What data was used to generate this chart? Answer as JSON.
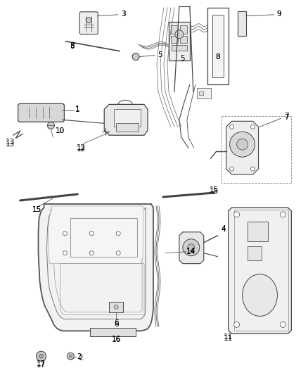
{
  "background_color": "#ffffff",
  "line_color": "#444444",
  "figsize": [
    4.38,
    5.33
  ],
  "dpi": 100,
  "label_fontsize": 7.5
}
